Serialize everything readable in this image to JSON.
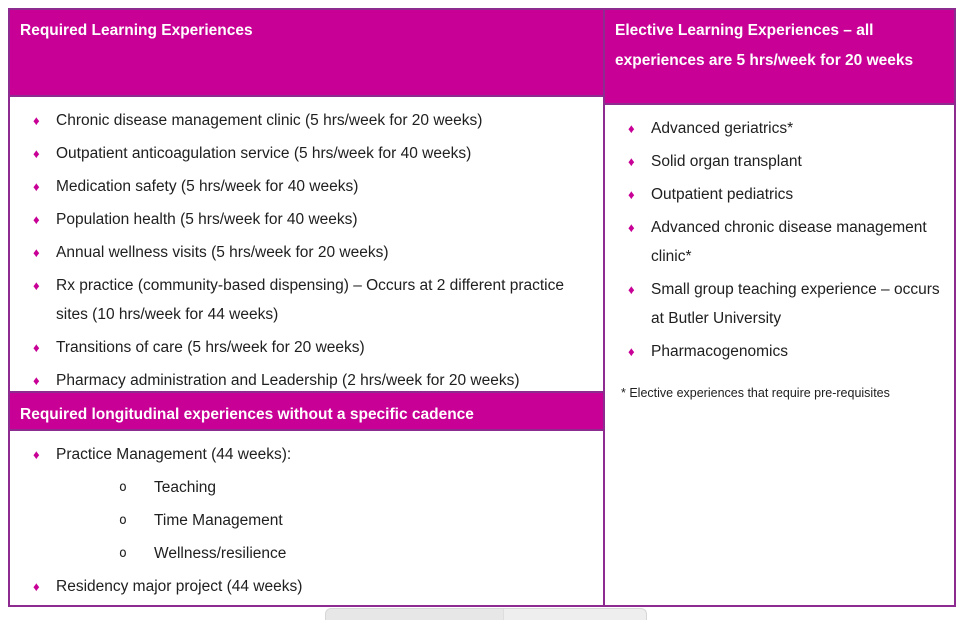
{
  "colors": {
    "header_bg": "#C80096",
    "table_border": "#8E2B90",
    "bullet": "#C80096",
    "body_text": "#202020",
    "header_text": "#ffffff"
  },
  "bullets": {
    "level1_glyph": "♦",
    "level2_glyph": "o"
  },
  "left_column": {
    "header": "Required Learning Experiences",
    "required_items": [
      "Chronic disease management clinic (5 hrs/week for 20 weeks)",
      "Outpatient anticoagulation service (5 hrs/week for 40 weeks)",
      "Medication safety (5 hrs/week for 40 weeks)",
      "Population health (5 hrs/week for 40 weeks)",
      "Annual wellness visits (5 hrs/week for 20 weeks)",
      "Rx practice (community-based dispensing) – Occurs at 2 different practice sites (10 hrs/week for 44 weeks)",
      "Transitions of care (5 hrs/week for 20 weeks)",
      "Pharmacy administration and Leadership (2 hrs/week for 20 weeks)"
    ],
    "longitudinal_header": "Required longitudinal experiences without a specific cadence",
    "longitudinal": {
      "practice_management": "Practice Management (44 weeks):",
      "practice_management_sub": [
        "Teaching",
        "Time Management",
        "Wellness/resilience"
      ],
      "residency_project": "Residency major project (44 weeks)"
    }
  },
  "right_column": {
    "header": "Elective Learning Experiences – all experiences are 5 hrs/week for 20 weeks",
    "items": [
      "Advanced geriatrics*",
      "Solid organ transplant",
      "Outpatient pediatrics",
      "Advanced chronic disease management clinic*",
      "Small group teaching experience – occurs at Butler University",
      "Pharmacogenomics"
    ],
    "footnote": "* Elective experiences that require pre-requisites"
  }
}
